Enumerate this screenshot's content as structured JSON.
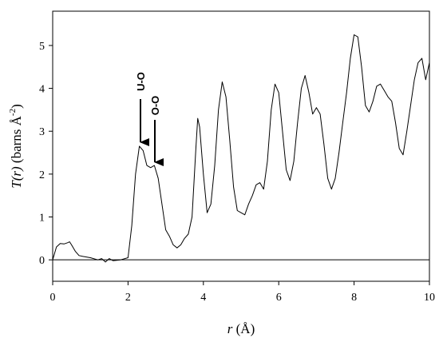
{
  "chart_data": {
    "type": "line",
    "y_label": {
      "name": "T(r)",
      "unit": "(barns Å",
      "exponent": "-2",
      "close": ")"
    },
    "x_label": {
      "name": "r",
      "unit": "(Å)"
    },
    "annotations": [
      "U-O",
      "O-O"
    ],
    "x": [
      0,
      0.1,
      0.2,
      0.3,
      0.4,
      0.45,
      0.5,
      0.6,
      0.7,
      0.8,
      1.0,
      1.2,
      1.3,
      1.4,
      1.5,
      1.6,
      1.8,
      2.0,
      2.1,
      2.2,
      2.3,
      2.4,
      2.5,
      2.6,
      2.7,
      2.8,
      2.9,
      3.0,
      3.1,
      3.2,
      3.3,
      3.4,
      3.5,
      3.6,
      3.7,
      3.8,
      3.85,
      3.9,
      4.0,
      4.1,
      4.2,
      4.3,
      4.4,
      4.5,
      4.6,
      4.7,
      4.8,
      4.9,
      5.0,
      5.1,
      5.2,
      5.3,
      5.4,
      5.5,
      5.6,
      5.7,
      5.8,
      5.9,
      6.0,
      6.1,
      6.2,
      6.3,
      6.4,
      6.5,
      6.6,
      6.7,
      6.8,
      6.9,
      7.0,
      7.1,
      7.2,
      7.3,
      7.4,
      7.5,
      7.6,
      7.7,
      7.8,
      7.9,
      8.0,
      8.1,
      8.2,
      8.3,
      8.4,
      8.5,
      8.6,
      8.7,
      8.8,
      8.9,
      9.0,
      9.1,
      9.2,
      9.3,
      9.4,
      9.5,
      9.6,
      9.7,
      9.8,
      9.9,
      10.0
    ],
    "series": [
      {
        "color": "#000000",
        "values": [
          0,
          0.3,
          0.38,
          0.37,
          0.4,
          0.42,
          0.35,
          0.2,
          0.1,
          0.08,
          0.05,
          0.0,
          0.03,
          -0.05,
          0.03,
          -0.02,
          0.0,
          0.05,
          0.8,
          2.0,
          2.65,
          2.55,
          2.2,
          2.15,
          2.2,
          1.9,
          1.3,
          0.7,
          0.55,
          0.35,
          0.28,
          0.35,
          0.5,
          0.6,
          1.0,
          2.6,
          3.3,
          3.1,
          2.0,
          1.1,
          1.3,
          2.2,
          3.5,
          4.15,
          3.8,
          2.8,
          1.7,
          1.15,
          1.1,
          1.05,
          1.3,
          1.5,
          1.75,
          1.8,
          1.65,
          2.3,
          3.5,
          4.1,
          3.9,
          3.0,
          2.1,
          1.85,
          2.3,
          3.2,
          4.0,
          4.3,
          3.9,
          3.4,
          3.55,
          3.4,
          2.7,
          1.9,
          1.65,
          1.9,
          2.5,
          3.2,
          3.9,
          4.7,
          5.25,
          5.2,
          4.5,
          3.6,
          3.45,
          3.7,
          4.05,
          4.1,
          3.95,
          3.8,
          3.7,
          3.2,
          2.6,
          2.45,
          3.0,
          3.6,
          4.2,
          4.6,
          4.7,
          4.2,
          4.6
        ]
      }
    ],
    "xlim": [
      0,
      10
    ],
    "xticks": [
      0,
      2,
      4,
      6,
      8,
      10
    ],
    "ylim": [
      -0.5,
      5.8
    ],
    "yticks": [
      0,
      1,
      2,
      3,
      4,
      5
    ],
    "zero_line": true
  }
}
